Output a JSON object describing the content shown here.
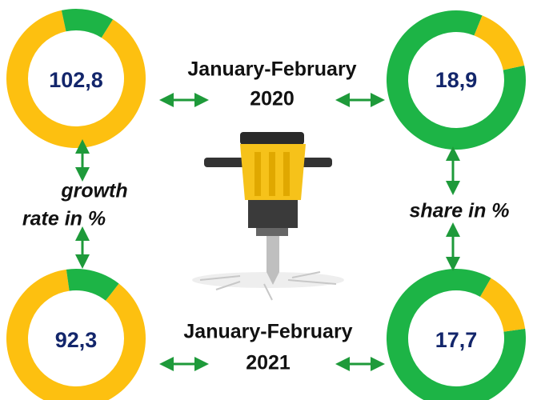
{
  "top": {
    "period": "January-February",
    "year": "2020",
    "growth_rate": "102,8",
    "share": "18,9"
  },
  "bottom": {
    "period": "January-February",
    "year": "2021",
    "growth_rate": "92,3",
    "share": "17,7"
  },
  "left_label": [
    "growth",
    "rate in %"
  ],
  "right_label": "share in %"
}
